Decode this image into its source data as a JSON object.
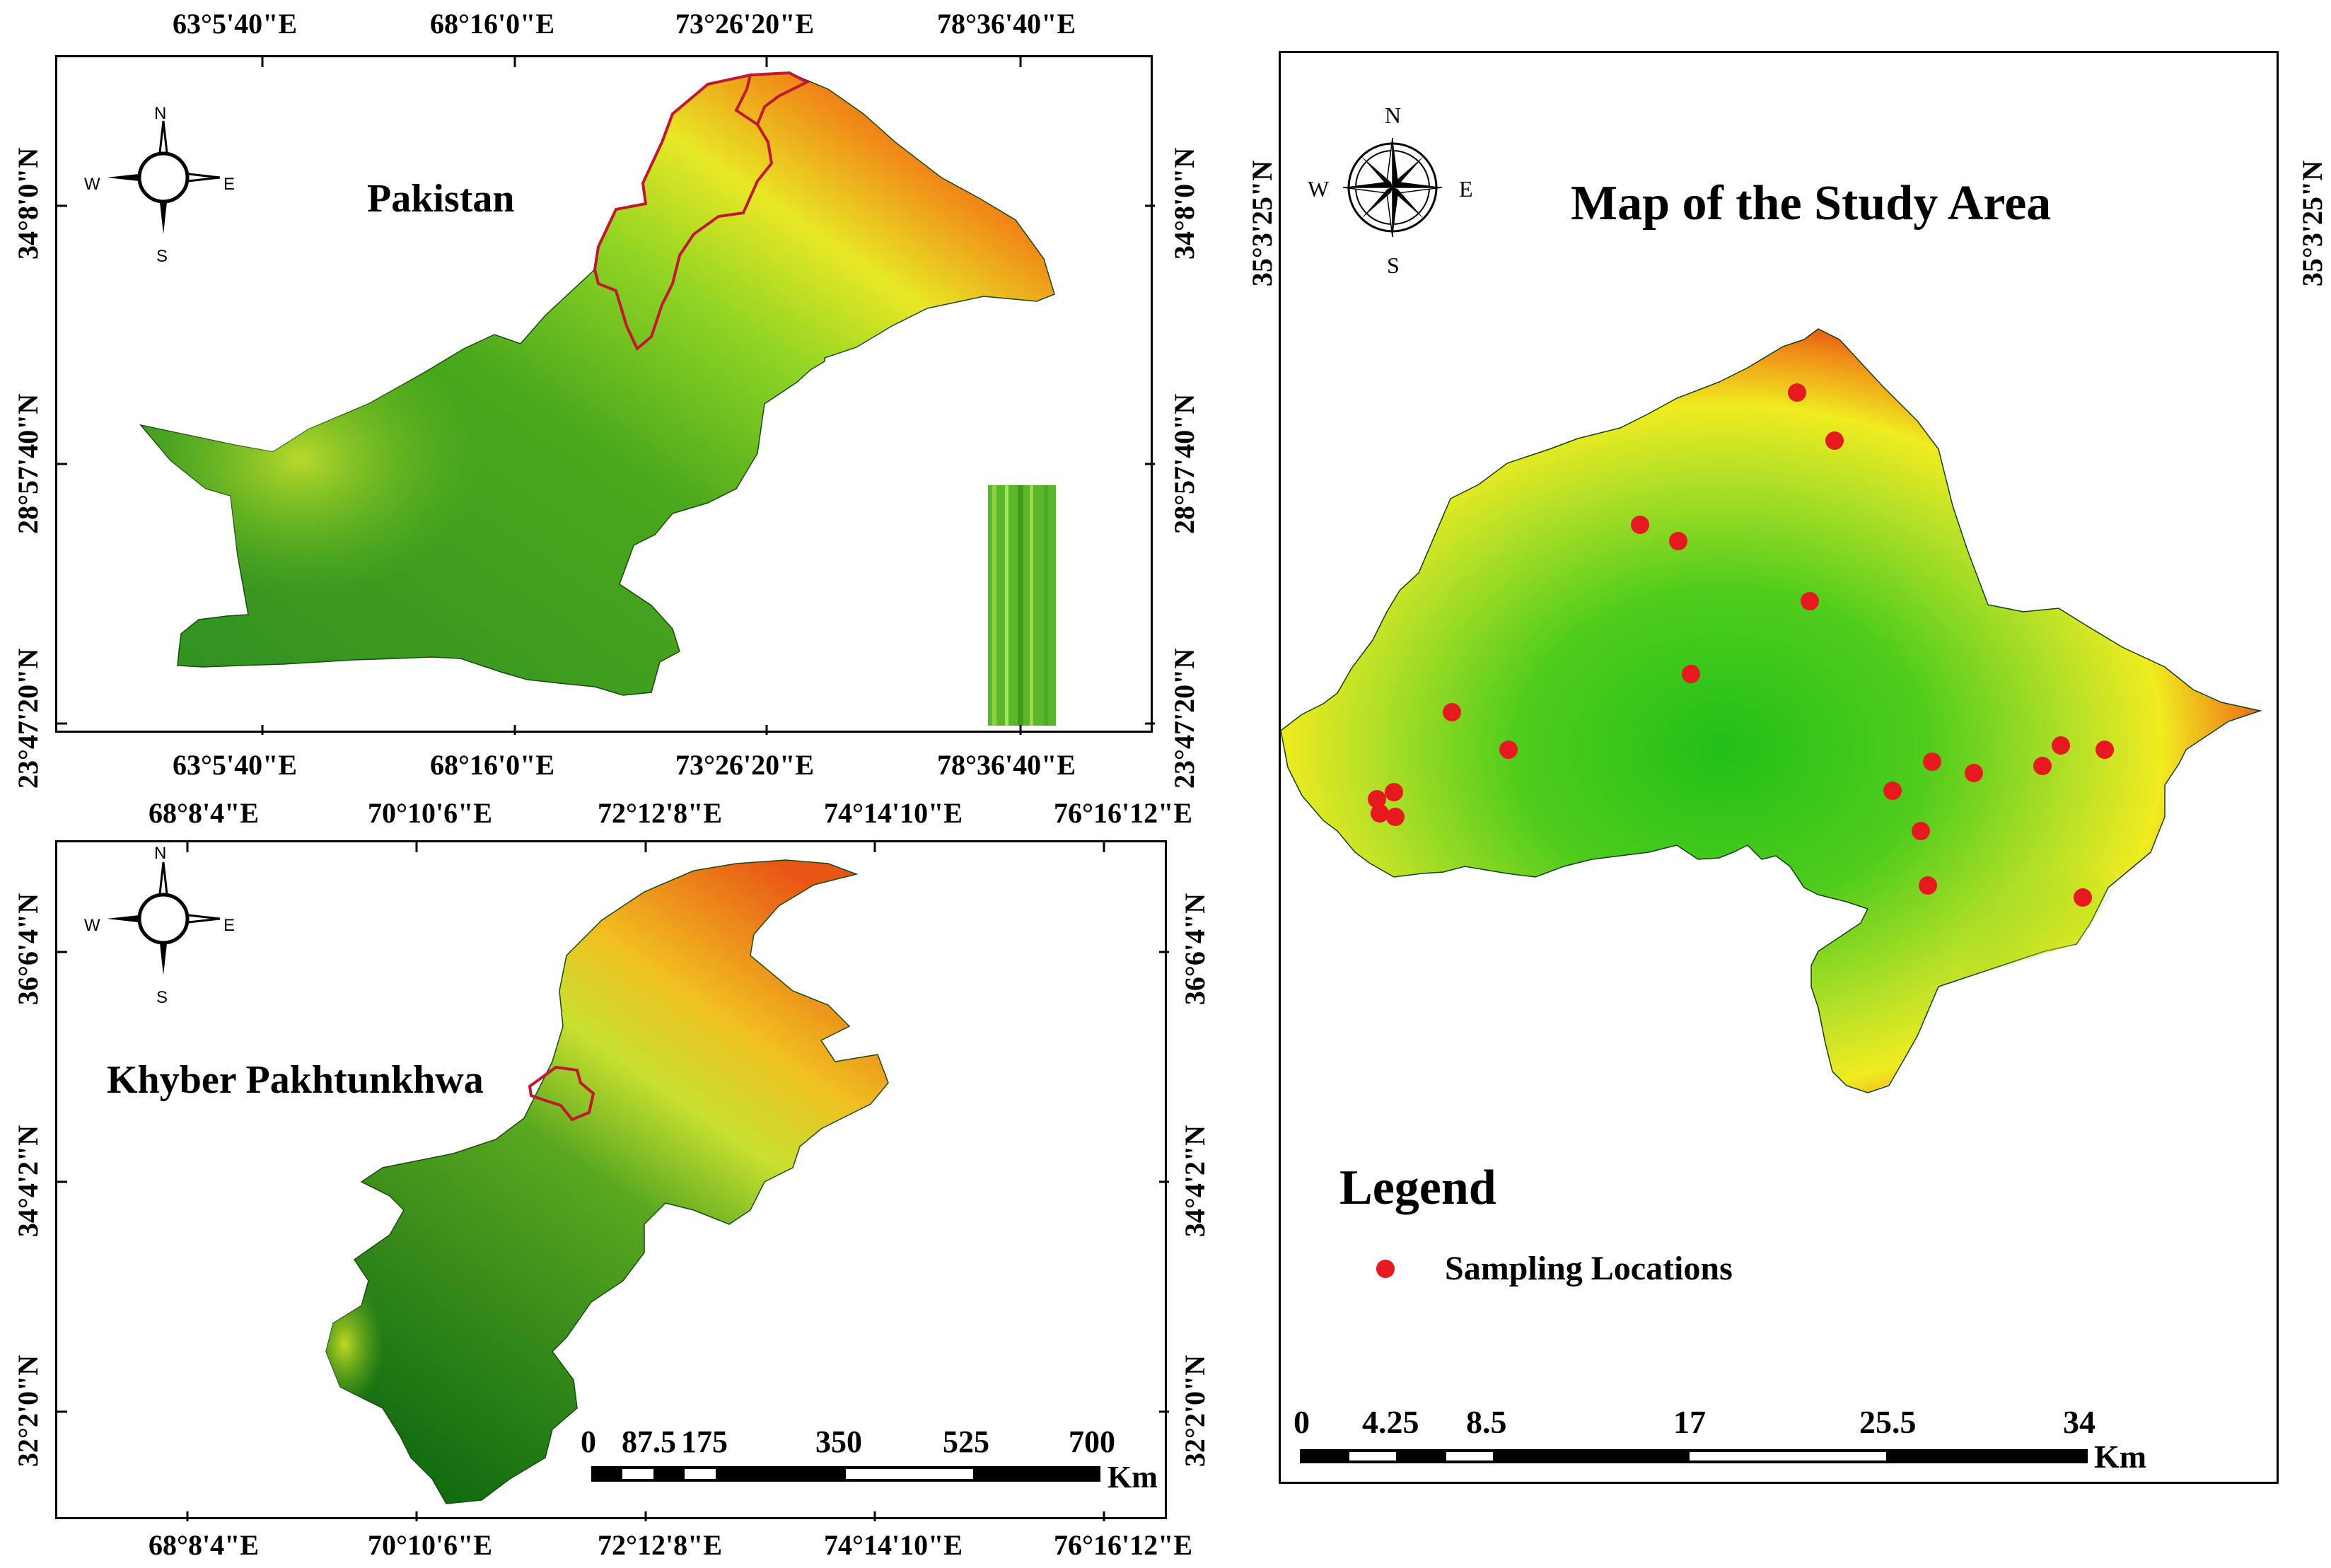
{
  "panels": {
    "pakistan": {
      "title": "Pakistan",
      "lon_labels": [
        "63°5'40\"E",
        "68°16'0\"E",
        "73°26'20\"E",
        "78°36'40\"E"
      ],
      "lat_labels": [
        "34°8'0\"N",
        "28°57'40\"N",
        "23°47'20\"N"
      ],
      "compass": {
        "n": "N",
        "s": "S",
        "e": "E",
        "w": "W"
      }
    },
    "kpk": {
      "title": "Khyber Pakhtunkhwa",
      "lon_labels": [
        "68°8'4\"E",
        "70°10'6\"E",
        "72°12'8\"E",
        "74°14'10\"E",
        "76°16'12\"E"
      ],
      "lat_labels": [
        "36°6'4\"N",
        "34°4'2\"N",
        "32°2'0\"N"
      ],
      "compass": {
        "n": "N",
        "s": "S",
        "e": "E",
        "w": "W"
      },
      "scalebar": {
        "ticks": [
          "0",
          "87.5",
          "175",
          "350",
          "525",
          "700"
        ],
        "unit": "Km"
      }
    },
    "study": {
      "title": "Map of the Study Area",
      "lat_label": "35°3'25\"N",
      "compass": {
        "n": "N",
        "s": "S",
        "e": "E",
        "w": "W"
      },
      "legend": {
        "heading": "Legend",
        "item": "Sampling Locations"
      },
      "scalebar": {
        "ticks": [
          "0",
          "4.25",
          "8.5",
          "17",
          "25.5",
          "34"
        ],
        "unit": "Km"
      },
      "sampling_count": 21
    }
  },
  "colors": {
    "low": "#2e8b1c",
    "mid": "#7ccf1e",
    "high_yellow": "#f0f020",
    "high_orange": "#f08a18",
    "peak_red": "#e02010",
    "boundary": "#c0182c",
    "point": "#e6191f"
  }
}
